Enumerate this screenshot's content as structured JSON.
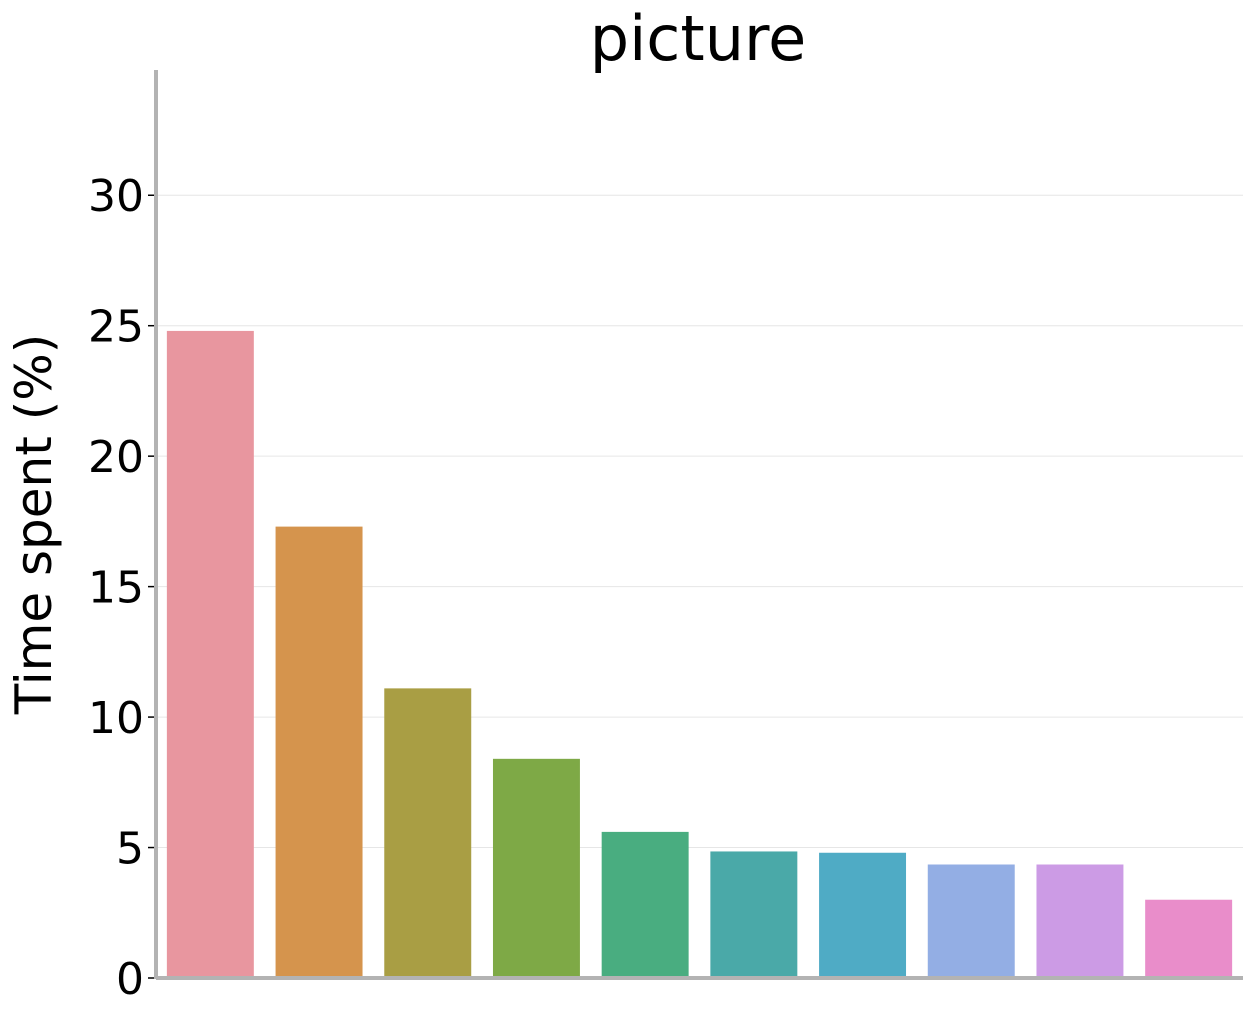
{
  "chart_data": {
    "type": "bar",
    "title": "picture",
    "xlabel": "",
    "ylabel": "Time spent (%)",
    "ylim": [
      0,
      34.8
    ],
    "yticks": [
      0,
      5,
      10,
      15,
      20,
      25,
      30
    ],
    "ytick_labels": [
      "0",
      "5",
      "10",
      "15",
      "20",
      "25",
      "30"
    ],
    "grid": "horizontal",
    "legend": "none",
    "values": [
      24.8,
      17.3,
      11.1,
      8.4,
      5.6,
      4.85,
      4.8,
      4.35,
      4.35,
      3.0
    ],
    "colors": [
      "#e8969f",
      "#d5944d",
      "#a99e44",
      "#7ea946",
      "#49ad80",
      "#4aa9a8",
      "#4fabc5",
      "#93aee4",
      "#cc9be5",
      "#e98dca"
    ]
  }
}
